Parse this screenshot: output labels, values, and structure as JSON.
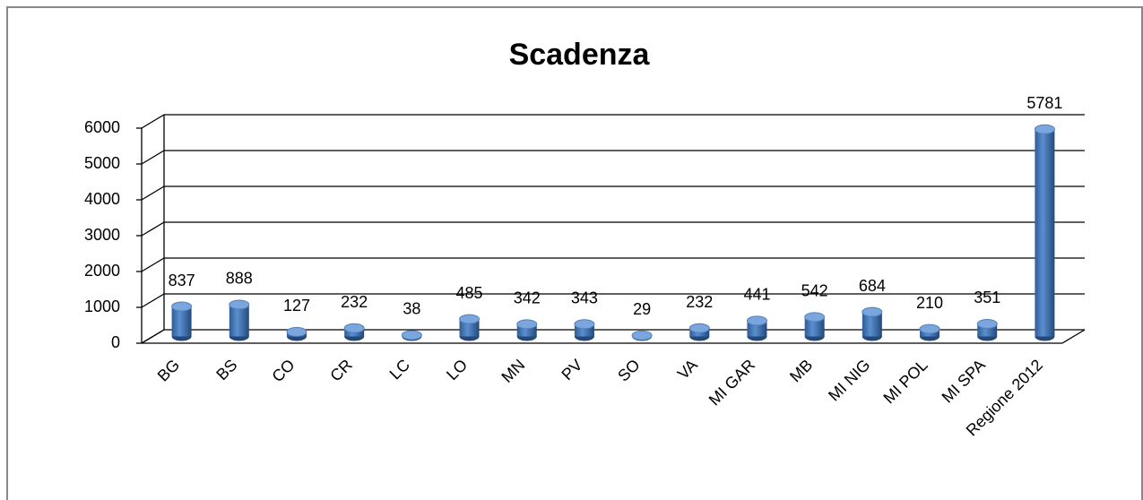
{
  "chart_data": {
    "type": "bar",
    "title": "Scadenza",
    "categories": [
      "BG",
      "BS",
      "CO",
      "CR",
      "LC",
      "LO",
      "MN",
      "PV",
      "SO",
      "VA",
      "MI GAR",
      "MB",
      "MI NIG",
      "MI POL",
      "MI SPA",
      "Regione 2012"
    ],
    "values": [
      837,
      888,
      127,
      232,
      38,
      485,
      342,
      343,
      29,
      232,
      441,
      542,
      684,
      210,
      351,
      5781
    ],
    "color": "#4f81bd",
    "ylim": [
      0,
      6000
    ],
    "yticks": [
      0,
      1000,
      2000,
      3000,
      4000,
      5000,
      6000
    ],
    "grid": true
  }
}
